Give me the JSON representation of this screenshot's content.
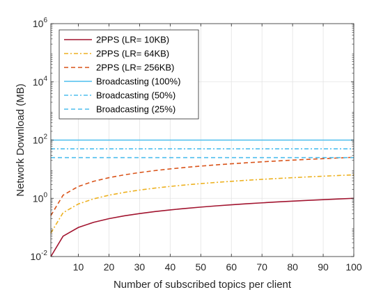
{
  "chart_data": {
    "type": "line",
    "xlabel": "Number of subscribed topics per client",
    "ylabel": "Network Download (MB)",
    "x_ticks": [
      10,
      20,
      30,
      40,
      50,
      60,
      70,
      80,
      90,
      100
    ],
    "xlim": [
      1,
      100
    ],
    "ylim": [
      0.01,
      1000000
    ],
    "y_scale": "log",
    "y_tick_labels": [
      {
        "value": 0.01,
        "base": "10",
        "exp": "-2"
      },
      {
        "value": 1,
        "base": "10",
        "exp": "0"
      },
      {
        "value": 100,
        "base": "10",
        "exp": "2"
      },
      {
        "value": 10000,
        "base": "10",
        "exp": "4"
      },
      {
        "value": 1000000,
        "base": "10",
        "exp": "6"
      }
    ],
    "grid": true,
    "legend_position": "top-left",
    "x": [
      1,
      5,
      10,
      15,
      20,
      25,
      30,
      35,
      40,
      45,
      50,
      55,
      60,
      65,
      70,
      75,
      80,
      85,
      90,
      95,
      100
    ],
    "series": [
      {
        "name": "2PPS (LR= 10KB)",
        "color": "#A2142F",
        "dash": "solid",
        "values": [
          0.01,
          0.05,
          0.1,
          0.15,
          0.2,
          0.25,
          0.3,
          0.35,
          0.4,
          0.45,
          0.5,
          0.55,
          0.6,
          0.65,
          0.7,
          0.75,
          0.8,
          0.85,
          0.9,
          0.95,
          1.0
        ]
      },
      {
        "name": "2PPS (LR= 64KB)",
        "color": "#EDB120",
        "dash": "dashdot",
        "values": [
          0.064,
          0.32,
          0.64,
          0.96,
          1.28,
          1.6,
          1.92,
          2.24,
          2.56,
          2.88,
          3.2,
          3.52,
          3.84,
          4.16,
          4.48,
          4.8,
          5.12,
          5.44,
          5.76,
          6.08,
          6.4
        ]
      },
      {
        "name": "2PPS (LR= 256KB)",
        "color": "#D95319",
        "dash": "dashed",
        "values": [
          0.256,
          1.28,
          2.56,
          3.84,
          5.12,
          6.4,
          7.68,
          8.96,
          10.24,
          11.52,
          12.8,
          14.08,
          15.36,
          16.64,
          17.92,
          19.2,
          20.48,
          21.76,
          23.04,
          24.32,
          25.6
        ]
      },
      {
        "name": "Broadcasting (100%)",
        "color": "#4DBEEE",
        "dash": "solid",
        "constant": 100
      },
      {
        "name": "Broadcasting (50%)",
        "color": "#4DBEEE",
        "dash": "dashdot",
        "constant": 50
      },
      {
        "name": "Broadcasting (25%)",
        "color": "#4DBEEE",
        "dash": "dashed",
        "constant": 25
      }
    ]
  }
}
